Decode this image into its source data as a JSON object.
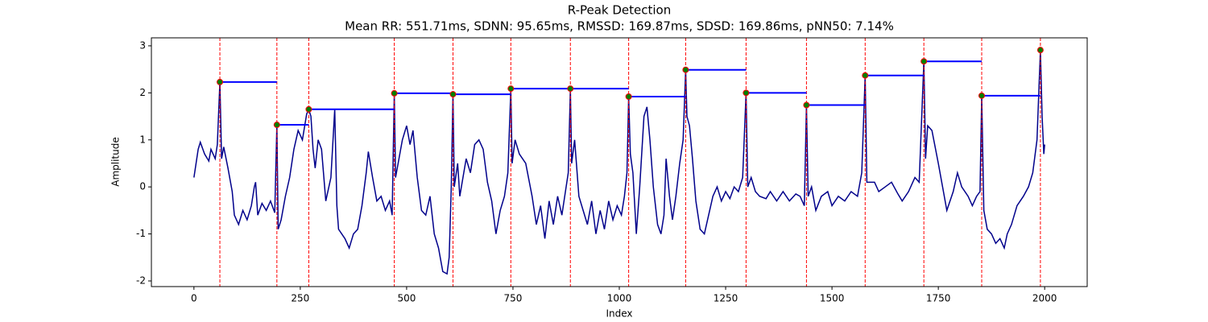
{
  "chart_data": {
    "type": "line",
    "title": "R-Peak Detection",
    "subtitle": "Mean RR: 551.71ms, SDNN: 95.65ms, RMSSD: 169.87ms, SDSD: 169.86ms, pNN50: 7.14%",
    "x_label": "Index",
    "y_label": "Amplitude",
    "xlim": [
      -100,
      2100
    ],
    "ylim": [
      -2.12,
      3.17
    ],
    "xticks": [
      0,
      250,
      500,
      750,
      1000,
      1250,
      1500,
      1750,
      2000
    ],
    "yticks": [
      -2,
      -1,
      0,
      1,
      2,
      3
    ],
    "series": [
      {
        "color": "#00008b",
        "x": [
          0,
          10,
          15,
          25,
          35,
          40,
          50,
          55,
          61,
          65,
          70,
          80,
          90,
          95,
          105,
          115,
          125,
          135,
          142,
          145,
          150,
          160,
          170,
          180,
          190,
          195,
          198,
          205,
          215,
          225,
          235,
          245,
          255,
          265,
          270,
          275,
          280,
          285,
          292,
          300,
          310,
          322,
          331,
          336,
          340,
          355,
          365,
          375,
          385,
          395,
          405,
          410,
          420,
          430,
          440,
          450,
          460,
          466,
          471,
          474,
          480,
          490,
          500,
          508,
          515,
          525,
          535,
          545,
          555,
          565,
          575,
          585,
          595,
          600,
          605,
          609,
          612,
          620,
          625,
          640,
          650,
          660,
          670,
          680,
          690,
          700,
          710,
          720,
          730,
          738,
          745,
          748,
          755,
          765,
          780,
          795,
          805,
          815,
          825,
          835,
          845,
          855,
          865,
          875,
          880,
          885,
          888,
          895,
          905,
          915,
          925,
          935,
          945,
          955,
          965,
          975,
          985,
          995,
          1005,
          1012,
          1018,
          1022,
          1026,
          1032,
          1040,
          1048,
          1058,
          1065,
          1072,
          1080,
          1090,
          1098,
          1105,
          1110,
          1118,
          1125,
          1133,
          1142,
          1150,
          1156,
          1159,
          1165,
          1172,
          1180,
          1190,
          1200,
          1210,
          1220,
          1230,
          1240,
          1250,
          1260,
          1270,
          1280,
          1290,
          1298,
          1302,
          1310,
          1320,
          1330,
          1345,
          1355,
          1370,
          1385,
          1400,
          1415,
          1425,
          1435,
          1440,
          1444,
          1452,
          1462,
          1475,
          1490,
          1500,
          1515,
          1530,
          1545,
          1560,
          1570,
          1578,
          1582,
          1590,
          1600,
          1610,
          1625,
          1640,
          1655,
          1665,
          1680,
          1695,
          1705,
          1716,
          1720,
          1725,
          1735,
          1750,
          1760,
          1770,
          1785,
          1795,
          1805,
          1820,
          1830,
          1840,
          1848,
          1852,
          1857,
          1865,
          1875,
          1885,
          1895,
          1905,
          1912,
          1922,
          1935,
          1950,
          1962,
          1972,
          1982,
          1990,
          1994,
          1998,
          2000
        ],
        "values": [
          0.2,
          0.8,
          0.95,
          0.7,
          0.55,
          0.8,
          0.6,
          0.9,
          2.23,
          0.6,
          0.85,
          0.4,
          -0.1,
          -0.6,
          -0.8,
          -0.5,
          -0.7,
          -0.4,
          0,
          0.1,
          -0.6,
          -0.35,
          -0.5,
          -0.3,
          -0.55,
          1.32,
          -0.9,
          -0.7,
          -0.2,
          0.2,
          0.8,
          1.2,
          1.0,
          1.55,
          1.65,
          1.5,
          0.8,
          0.4,
          1.0,
          0.8,
          -0.3,
          0.2,
          1.65,
          -0.4,
          -0.9,
          -1.1,
          -1.3,
          -1.0,
          -0.9,
          -0.4,
          0.3,
          0.75,
          0.2,
          -0.3,
          -0.2,
          -0.5,
          -0.3,
          -0.6,
          1.99,
          0.2,
          0.5,
          1.0,
          1.3,
          0.9,
          1.2,
          0.2,
          -0.5,
          -0.6,
          -0.2,
          -1.0,
          -1.3,
          -1.8,
          -1.85,
          -1.5,
          0,
          1.97,
          0,
          0.5,
          -0.2,
          0.6,
          0.3,
          0.9,
          1.0,
          0.8,
          0.1,
          -0.3,
          -1.0,
          -0.5,
          -0.2,
          0.3,
          2.09,
          0.5,
          1.0,
          0.7,
          0.5,
          -0.2,
          -0.8,
          -0.4,
          -1.1,
          -0.3,
          -0.8,
          -0.2,
          -0.6,
          0,
          0.3,
          2.09,
          0.5,
          1.0,
          -0.2,
          -0.5,
          -0.8,
          -0.3,
          -1.0,
          -0.5,
          -0.9,
          -0.3,
          -0.7,
          -0.4,
          -0.6,
          -0.2,
          0.3,
          1.92,
          0.7,
          0.3,
          -1.0,
          0,
          1.5,
          1.7,
          1.0,
          0,
          -0.8,
          -1.0,
          -0.6,
          0.6,
          -0.2,
          -0.7,
          -0.2,
          0.5,
          1.0,
          2.49,
          1.5,
          1.3,
          0.6,
          -0.3,
          -0.9,
          -1.0,
          -0.6,
          -0.2,
          0,
          -0.3,
          -0.1,
          -0.25,
          0,
          -0.1,
          0.2,
          2.0,
          0,
          0.2,
          -0.1,
          -0.2,
          -0.25,
          -0.1,
          -0.3,
          -0.1,
          -0.3,
          -0.15,
          -0.2,
          -0.4,
          1.74,
          -0.2,
          0,
          -0.5,
          -0.2,
          -0.1,
          -0.4,
          -0.2,
          -0.3,
          -0.1,
          -0.2,
          0.3,
          2.37,
          0.1,
          0.1,
          0.1,
          -0.1,
          0,
          0.1,
          -0.15,
          -0.3,
          -0.1,
          0.2,
          0.1,
          2.67,
          0.6,
          1.3,
          1.2,
          0.5,
          0,
          -0.5,
          -0.1,
          0.3,
          0,
          -0.2,
          -0.4,
          -0.2,
          -0.1,
          1.94,
          -0.5,
          -0.9,
          -1.0,
          -1.2,
          -1.1,
          -1.3,
          -1.0,
          -0.8,
          -0.4,
          -0.2,
          0,
          0.3,
          1.0,
          2.91,
          1.5,
          0.7,
          0.9
        ]
      },
      {
        "color": "#008000",
        "edge_color": "#ff0000",
        "peak_line_color": "#ff0000",
        "rr_line_color": "#0000ff",
        "x": [
          61,
          195,
          270,
          471,
          609,
          745,
          885,
          1022,
          1156,
          1298,
          1440,
          1578,
          1716,
          1852,
          1990
        ],
        "values": [
          2.23,
          1.32,
          1.65,
          1.99,
          1.97,
          2.09,
          2.09,
          1.92,
          2.49,
          2.0,
          1.74,
          2.37,
          2.67,
          1.94,
          2.91
        ]
      }
    ]
  }
}
